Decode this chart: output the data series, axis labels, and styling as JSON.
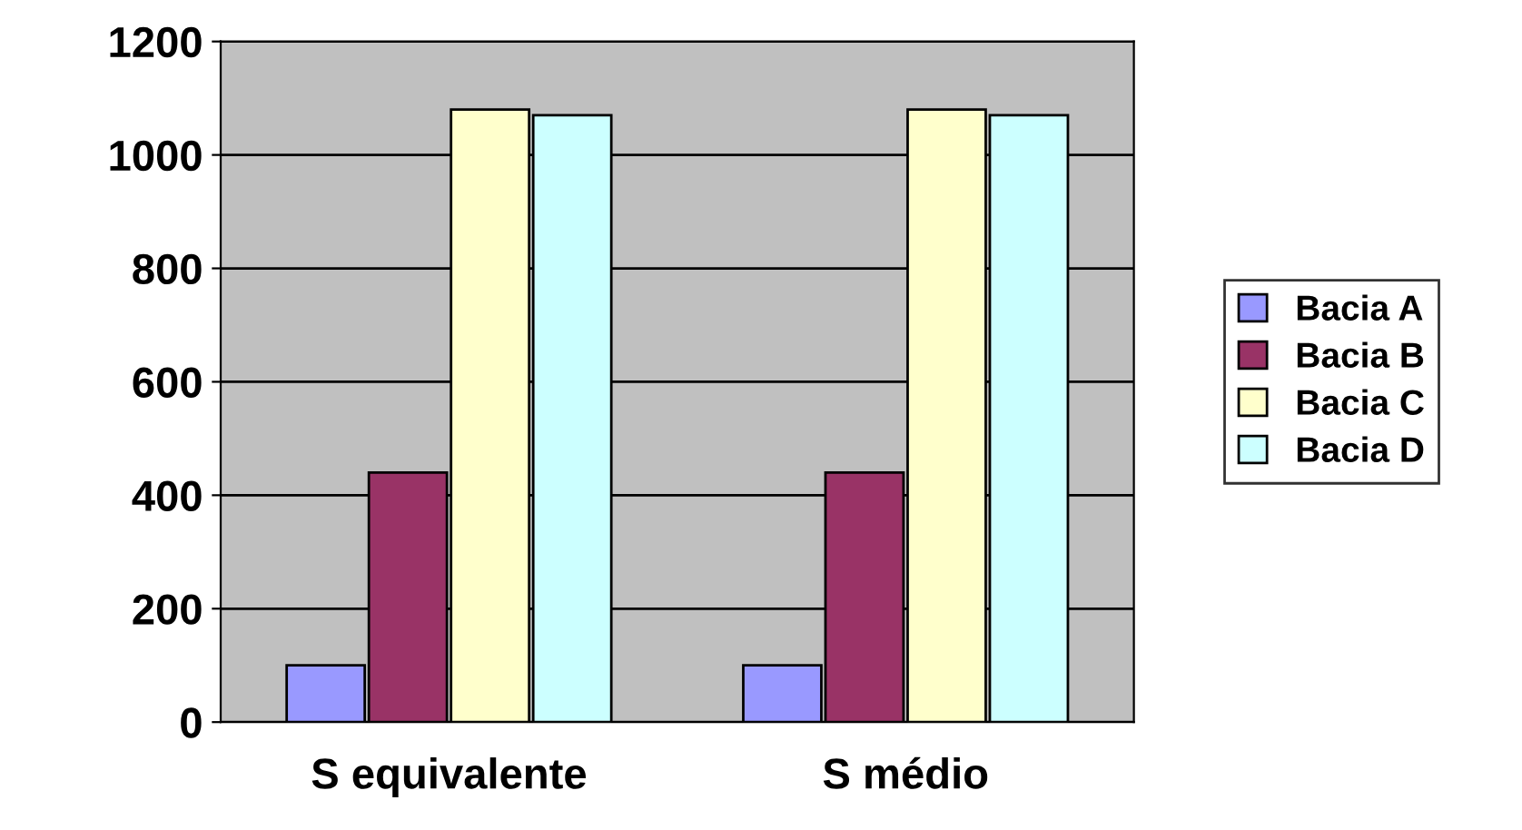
{
  "chart_data": {
    "type": "bar",
    "categories": [
      "S equivalente",
      "S médio"
    ],
    "series": [
      {
        "name": "Bacia A",
        "color": "#9999ff",
        "values": [
          100,
          100
        ]
      },
      {
        "name": "Bacia B",
        "color": "#993366",
        "values": [
          440,
          440
        ]
      },
      {
        "name": "Bacia C",
        "color": "#ffffcc",
        "values": [
          1080,
          1080
        ]
      },
      {
        "name": "Bacia D",
        "color": "#ccffff",
        "values": [
          1070,
          1070
        ]
      }
    ],
    "ylim": [
      0,
      1200
    ],
    "yticks": [
      0,
      200,
      400,
      600,
      800,
      1000,
      1200
    ],
    "grid": "y",
    "legend": "right"
  }
}
